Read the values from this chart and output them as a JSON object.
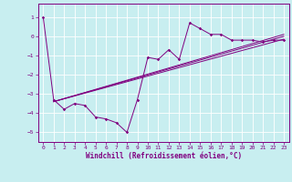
{
  "xlabel": "Windchill (Refroidissement éolien,°C)",
  "background_color": "#c8eef0",
  "line_color": "#800080",
  "grid_color": "#ffffff",
  "xlim": [
    -0.5,
    23.5
  ],
  "ylim": [
    -5.5,
    1.7
  ],
  "yticks": [
    1,
    0,
    -1,
    -2,
    -3,
    -4,
    -5
  ],
  "xticks": [
    0,
    1,
    2,
    3,
    4,
    5,
    6,
    7,
    8,
    9,
    10,
    11,
    12,
    13,
    14,
    15,
    16,
    17,
    18,
    19,
    20,
    21,
    22,
    23
  ],
  "series1_x": [
    0,
    1,
    2,
    3,
    4,
    5,
    6,
    7,
    8,
    9,
    10,
    11,
    12,
    13,
    14,
    15,
    16,
    17,
    18,
    19,
    20,
    21,
    22,
    23
  ],
  "series1_y": [
    1.0,
    -3.3,
    -3.8,
    -3.5,
    -3.6,
    -4.2,
    -4.3,
    -4.5,
    -5.0,
    -3.3,
    -1.1,
    -1.2,
    -0.7,
    -1.2,
    0.7,
    0.4,
    0.1,
    0.1,
    -0.2,
    -0.2,
    -0.2,
    -0.3,
    -0.2,
    -0.2
  ],
  "regression_lines": [
    {
      "x": [
        1,
        23
      ],
      "y": [
        -3.4,
        -0.15
      ]
    },
    {
      "x": [
        1,
        23
      ],
      "y": [
        -3.4,
        0.0
      ]
    },
    {
      "x": [
        1,
        23
      ],
      "y": [
        -3.4,
        0.1
      ]
    }
  ]
}
